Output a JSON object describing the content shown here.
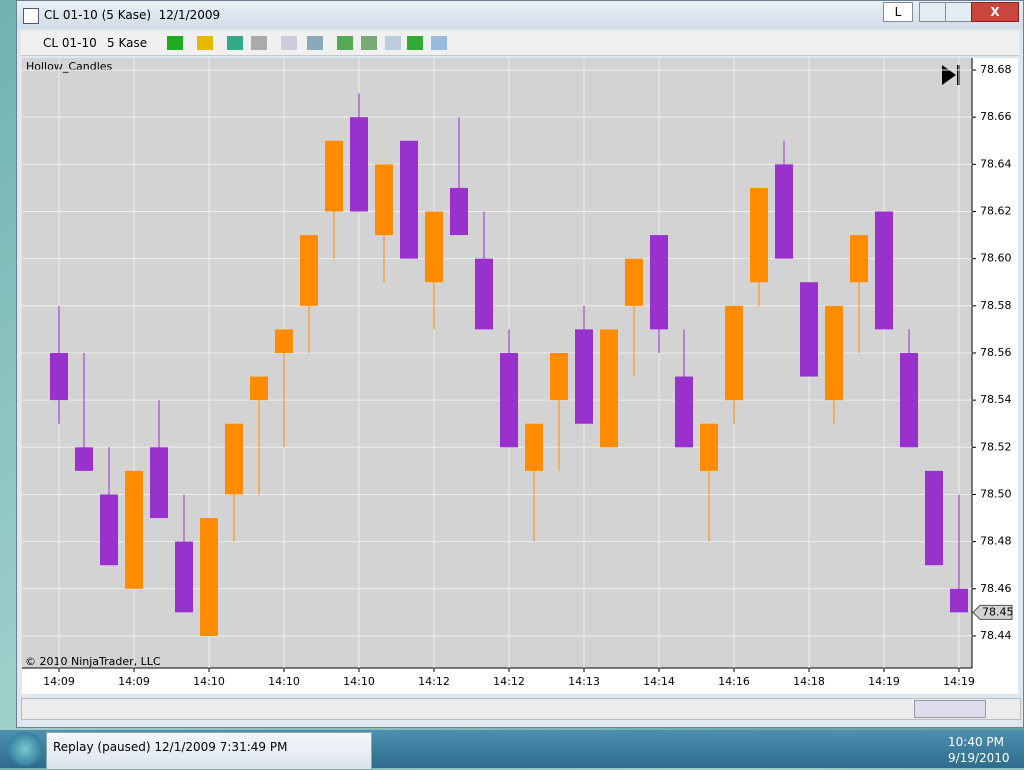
{
  "window": {
    "title": "CL 01-10 (5 Kase)  12/1/2009",
    "button": "L"
  },
  "toolbar": {
    "instrument": "CL 01-10",
    "period": "5 Kase"
  },
  "chart_data": {
    "type": "candlestick",
    "title": "Hollow_Candles",
    "credit": "© 2010 NinjaTrader, LLC",
    "categories": [
      "14:09",
      null,
      null,
      "14:09",
      null,
      null,
      "14:10",
      null,
      null,
      "14:10",
      null,
      null,
      "14:10",
      null,
      null,
      "14:12",
      null,
      null,
      "14:12",
      null,
      null,
      "14:13",
      null,
      null,
      "14:14",
      null,
      null,
      "14:16",
      null,
      null,
      "14:18",
      null,
      null,
      "14:19",
      null,
      null,
      "14:19"
    ],
    "open": [
      78.56,
      78.52,
      78.5,
      78.46,
      78.52,
      78.48,
      78.44,
      78.5,
      78.54,
      78.56,
      78.58,
      78.62,
      78.66,
      78.61,
      78.65,
      78.59,
      78.63,
      78.6,
      78.56,
      78.51,
      78.54,
      78.57,
      78.52,
      78.58,
      78.61,
      78.55,
      78.51,
      78.54,
      78.59,
      78.64,
      78.59,
      78.54,
      78.59,
      78.62,
      78.56,
      78.51,
      78.46
    ],
    "high": [
      78.58,
      78.56,
      78.52,
      78.51,
      78.54,
      78.5,
      78.49,
      78.53,
      78.55,
      78.57,
      78.61,
      78.65,
      78.67,
      78.64,
      78.65,
      78.62,
      78.66,
      78.62,
      78.57,
      78.53,
      78.56,
      78.58,
      78.57,
      78.6,
      78.61,
      78.57,
      78.53,
      78.58,
      78.63,
      78.65,
      78.59,
      78.58,
      78.61,
      78.62,
      78.57,
      78.51,
      78.5
    ],
    "low": [
      78.53,
      78.51,
      78.47,
      78.46,
      78.49,
      78.45,
      78.44,
      78.48,
      78.5,
      78.52,
      78.56,
      78.6,
      78.62,
      78.59,
      78.6,
      78.57,
      78.61,
      78.57,
      78.52,
      78.48,
      78.51,
      78.53,
      78.52,
      78.55,
      78.56,
      78.52,
      78.48,
      78.53,
      78.58,
      78.6,
      78.55,
      78.53,
      78.56,
      78.57,
      78.52,
      78.47,
      78.45
    ],
    "close": [
      78.54,
      78.51,
      78.47,
      78.51,
      78.49,
      78.45,
      78.49,
      78.53,
      78.55,
      78.57,
      78.61,
      78.65,
      78.62,
      78.64,
      78.6,
      78.62,
      78.61,
      78.57,
      78.52,
      78.53,
      78.56,
      78.53,
      78.57,
      78.6,
      78.57,
      78.52,
      78.53,
      78.58,
      78.63,
      78.6,
      78.55,
      78.58,
      78.61,
      78.57,
      78.52,
      78.47,
      78.45
    ],
    "up_color": "#ff8c00",
    "down_color": "#9932cc",
    "ylim": [
      78.4264,
      78.6851
    ],
    "yticks": [
      78.44,
      78.46,
      78.48,
      {
        "value": 78.5,
        "label": "78.50"
      },
      78.52,
      78.54,
      78.56,
      78.58,
      {
        "value": 78.6,
        "label": "78.60"
      },
      78.62,
      78.64,
      78.66,
      78.68
    ],
    "last_price": 78.45,
    "grid": true
  },
  "taskbar": {
    "task": "Replay (paused) 12/1/2009 7:31:49 PM",
    "time": "10:40 PM",
    "date": "9/19/2010"
  }
}
